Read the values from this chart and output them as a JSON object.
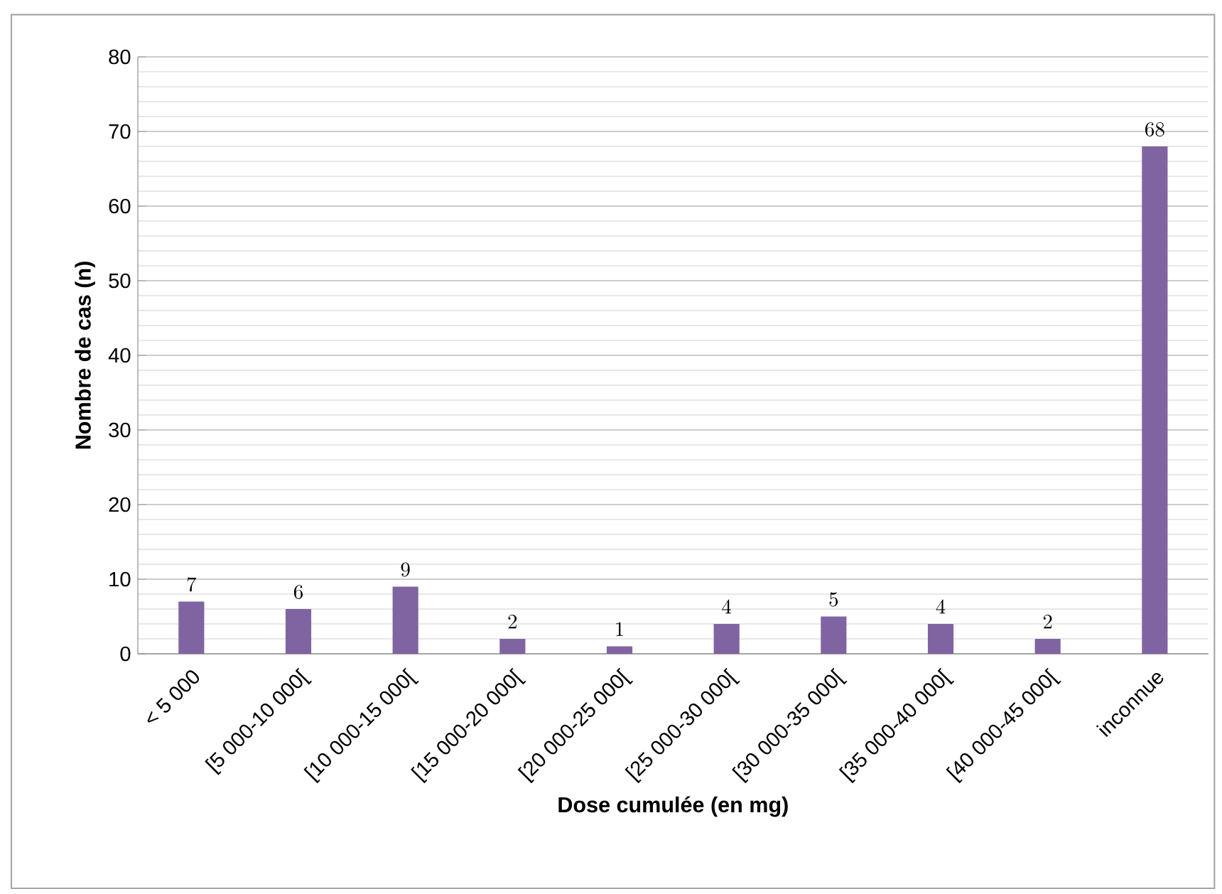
{
  "chart_data": {
    "type": "bar",
    "xlabel": "Dose cumulée (en mg)",
    "ylabel": "Nombre de cas (n)",
    "categories": [
      "< 5 000",
      "[5 000-10 000[",
      "[10 000-15 000[",
      "[15 000-20 000[",
      "[20 000-25 000[",
      "[25 000-30 000[",
      "[30 000-35 000[",
      "[35 000-40 000[",
      "[40 000-45 000[",
      "inconnue"
    ],
    "values": [
      7,
      6,
      9,
      2,
      1,
      4,
      5,
      4,
      2,
      68
    ],
    "color": "#8064a2",
    "ylim": [
      0,
      80
    ],
    "yticks": [
      0,
      10,
      20,
      30,
      40,
      50,
      60,
      70,
      80
    ],
    "grid": "y",
    "data_labels": true
  }
}
